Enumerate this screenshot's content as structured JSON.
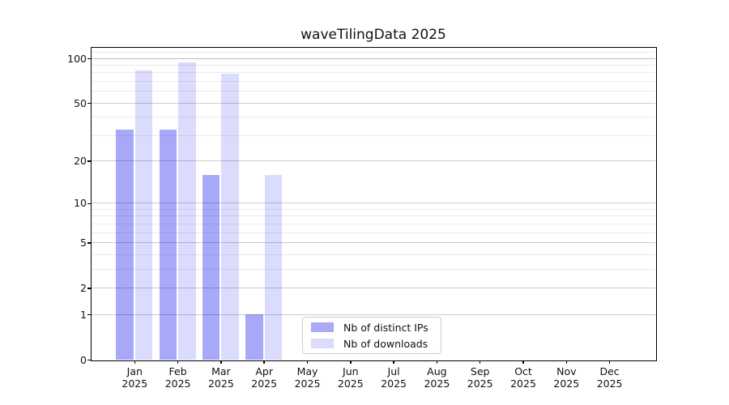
{
  "chart_data": {
    "type": "bar",
    "title": "waveTilingData 2025",
    "categories": [
      "Jan",
      "Feb",
      "Mar",
      "Apr",
      "May",
      "Jun",
      "Jul",
      "Aug",
      "Sep",
      "Oct",
      "Nov",
      "Dec"
    ],
    "year_label": "2025",
    "series": [
      {
        "name": "Nb of distinct IPs",
        "color": "#a9a9f6",
        "fill": "rgba(0,0,238,0.34)",
        "values": [
          33,
          33,
          16,
          1,
          0,
          0,
          0,
          0,
          0,
          0,
          0,
          0
        ]
      },
      {
        "name": "Nb of downloads",
        "color": "#dcdcfa",
        "fill": "rgba(0,0,238,0.14)",
        "values": [
          83,
          94,
          79,
          16,
          0,
          0,
          0,
          0,
          0,
          0,
          0,
          0
        ]
      }
    ],
    "xlabel": "",
    "ylabel": "",
    "y_axis": {
      "scale": "log10(1+value)",
      "ticks": [
        100,
        50,
        20,
        10,
        5,
        2,
        1,
        0
      ],
      "minor_gridlines": [
        3,
        4,
        6,
        7,
        8,
        9,
        30,
        40,
        60,
        70,
        80,
        90,
        110
      ],
      "ylim": [
        0,
        118
      ]
    },
    "grid": "on",
    "legend_position": "lower center",
    "colors": {
      "grid_major": "#cccccc",
      "grid_top": "#bdbdbd",
      "grid_minor": "#ebebeb",
      "spine": "#000000",
      "background": "#ffffff"
    }
  }
}
